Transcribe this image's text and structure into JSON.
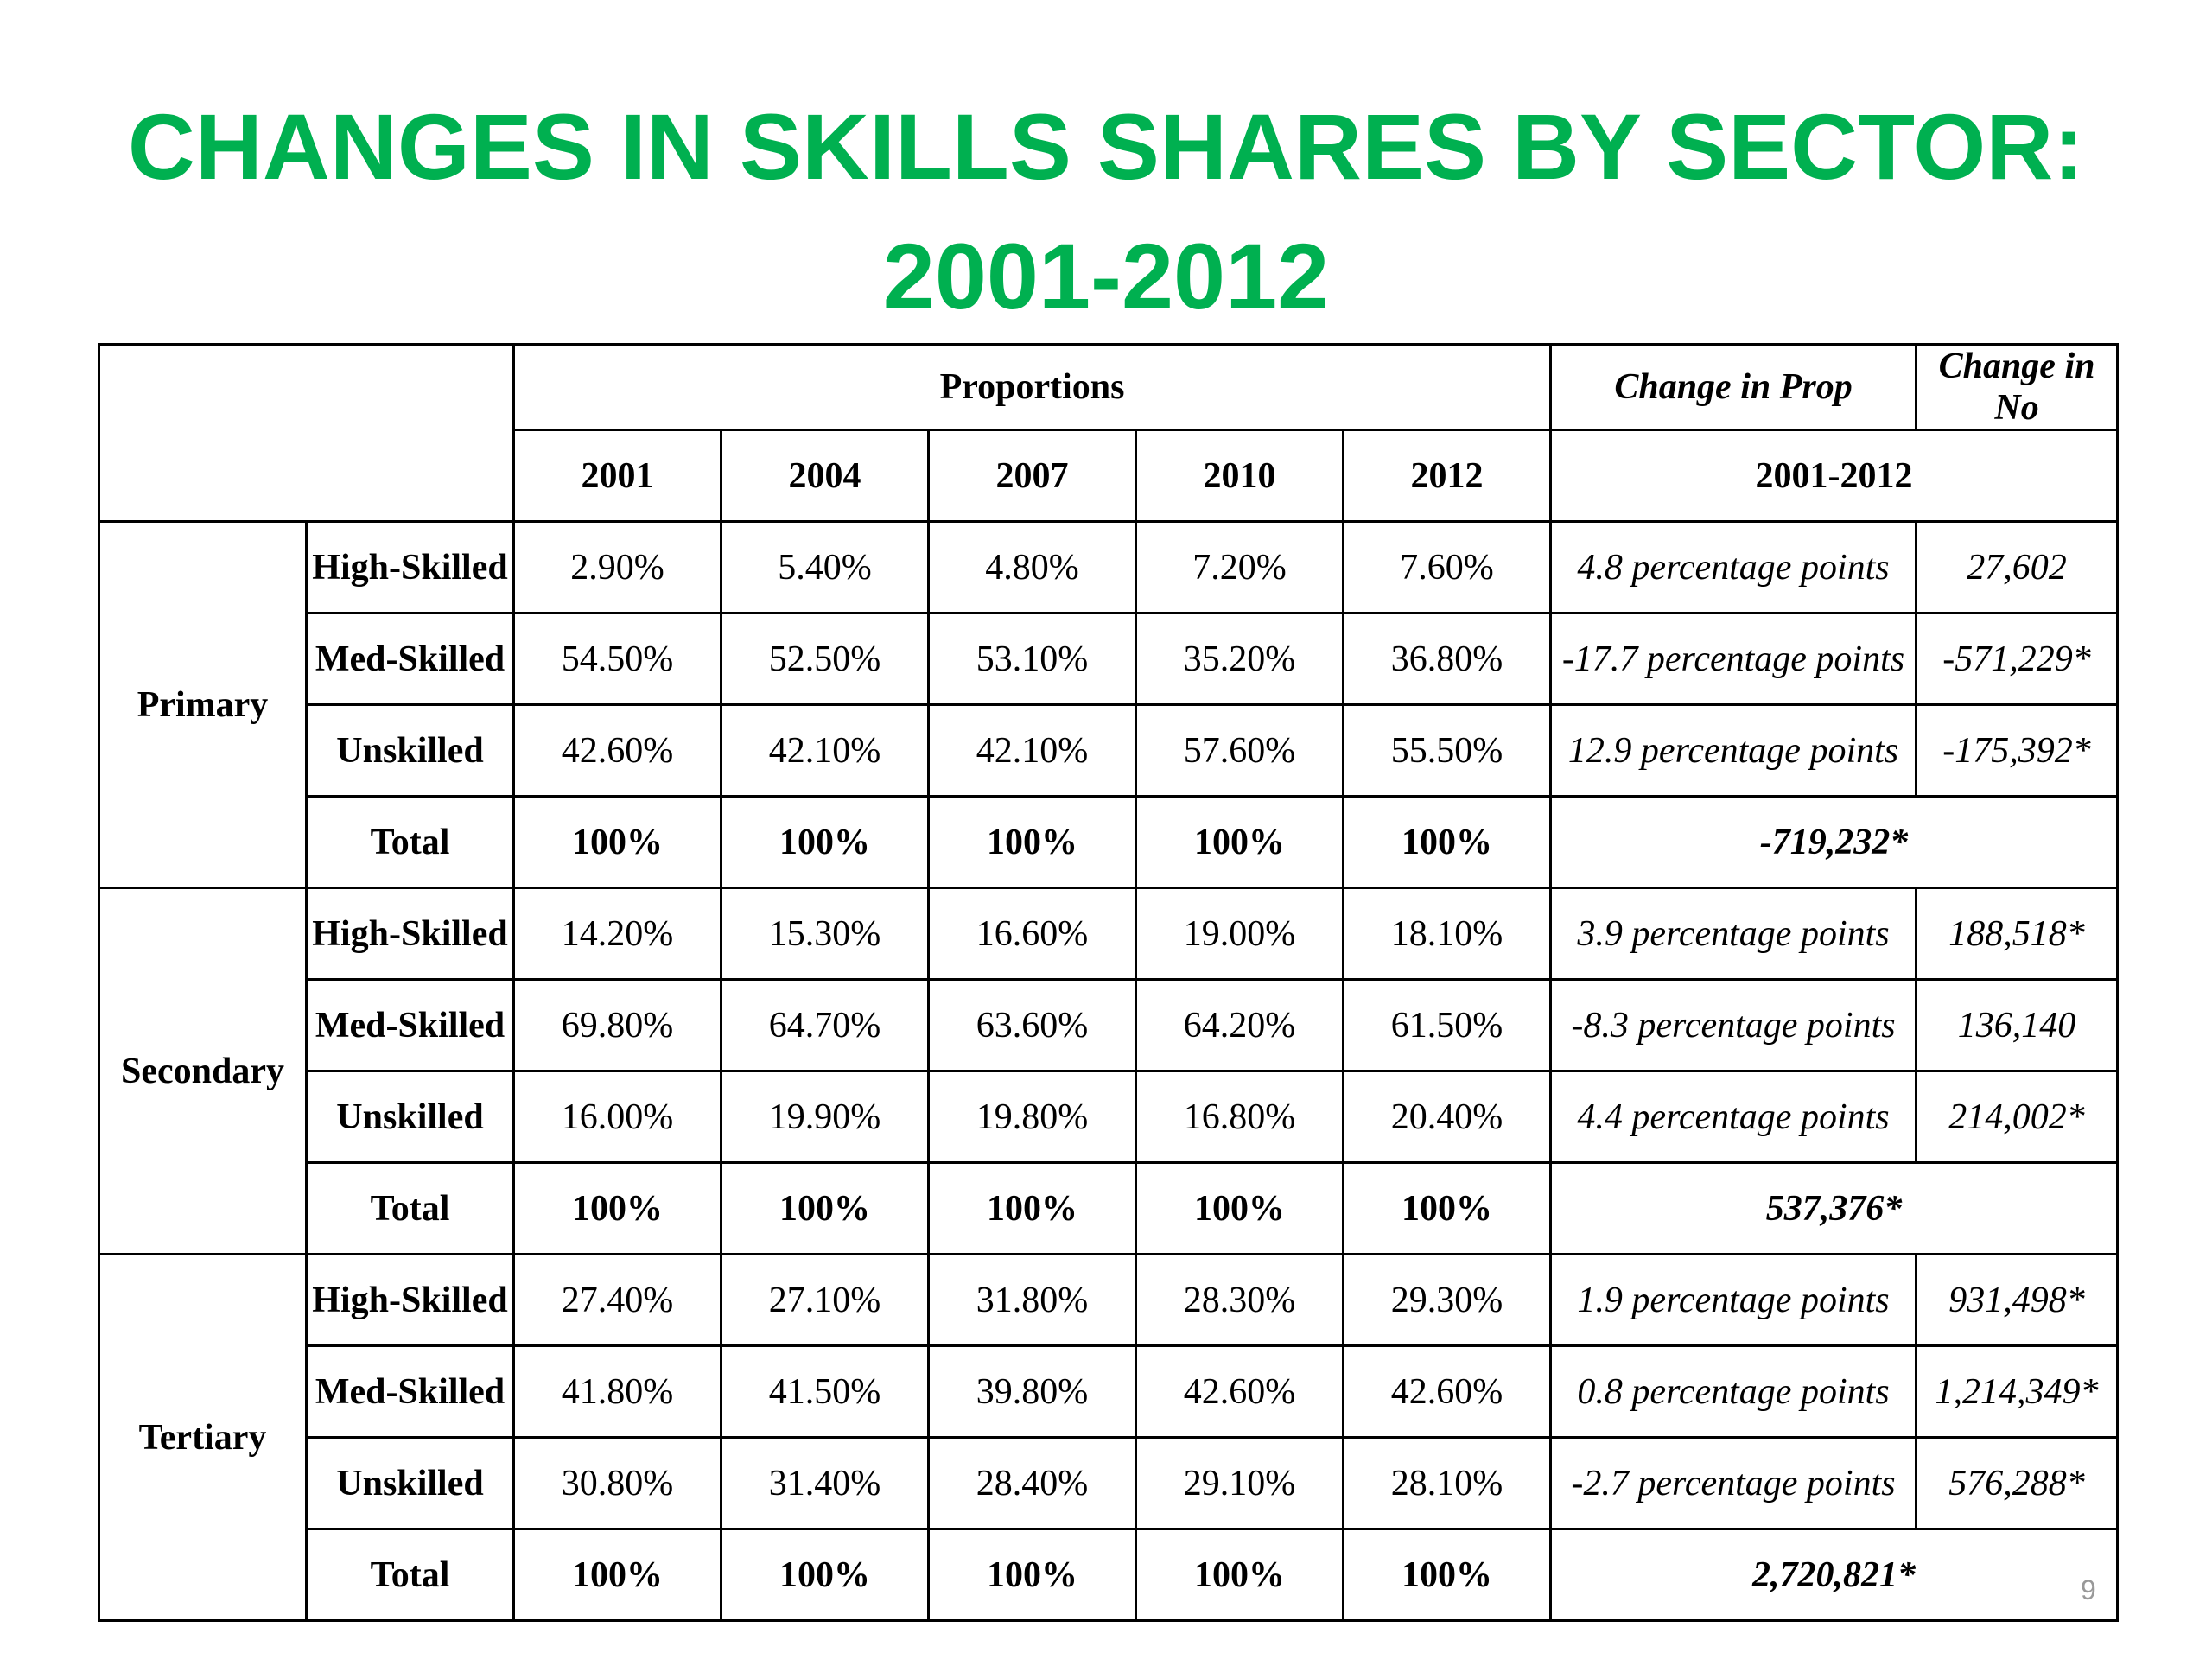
{
  "title": {
    "line1": "CHANGES IN SKILLS SHARES BY SECTOR:",
    "line2": "2001-2012"
  },
  "colors": {
    "title": "#00b050",
    "border": "#000000"
  },
  "table": {
    "header": {
      "proportions": "Proportions",
      "change_prop": "Change in Prop",
      "change_no": "Change in No",
      "years": [
        "2001",
        "2004",
        "2007",
        "2010",
        "2012"
      ],
      "period": "2001-2012"
    },
    "sectors": [
      {
        "name": "Primary",
        "rows": [
          {
            "level": "High-Skilled",
            "values": [
              "2.90%",
              "5.40%",
              "4.80%",
              "7.20%",
              "7.60%"
            ],
            "change_prop": "4.8 percentage points",
            "change_no": "27,602"
          },
          {
            "level": "Med-Skilled",
            "values": [
              "54.50%",
              "52.50%",
              "53.10%",
              "35.20%",
              "36.80%"
            ],
            "change_prop": "-17.7 percentage points",
            "change_no": "-571,229*"
          },
          {
            "level": "Unskilled",
            "values": [
              "42.60%",
              "42.10%",
              "42.10%",
              "57.60%",
              "55.50%"
            ],
            "change_prop": "12.9 percentage points",
            "change_no": "-175,392*"
          }
        ],
        "total": {
          "level": "Total",
          "values": [
            "100%",
            "100%",
            "100%",
            "100%",
            "100%"
          ],
          "change": "-719,232*"
        }
      },
      {
        "name": "Secondary",
        "rows": [
          {
            "level": "High-Skilled",
            "values": [
              "14.20%",
              "15.30%",
              "16.60%",
              "19.00%",
              "18.10%"
            ],
            "change_prop": "3.9 percentage points",
            "change_no": "188,518*"
          },
          {
            "level": "Med-Skilled",
            "values": [
              "69.80%",
              "64.70%",
              "63.60%",
              "64.20%",
              "61.50%"
            ],
            "change_prop": "-8.3 percentage points",
            "change_no": "136,140"
          },
          {
            "level": "Unskilled",
            "values": [
              "16.00%",
              "19.90%",
              "19.80%",
              "16.80%",
              "20.40%"
            ],
            "change_prop": "4.4 percentage points",
            "change_no": "214,002*"
          }
        ],
        "total": {
          "level": "Total",
          "values": [
            "100%",
            "100%",
            "100%",
            "100%",
            "100%"
          ],
          "change": "537,376*"
        }
      },
      {
        "name": "Tertiary",
        "rows": [
          {
            "level": "High-Skilled",
            "values": [
              "27.40%",
              "27.10%",
              "31.80%",
              "28.30%",
              "29.30%"
            ],
            "change_prop": "1.9 percentage points",
            "change_no": "931,498*"
          },
          {
            "level": "Med-Skilled",
            "values": [
              "41.80%",
              "41.50%",
              "39.80%",
              "42.60%",
              "42.60%"
            ],
            "change_prop": "0.8 percentage points",
            "change_no": "1,214,349*"
          },
          {
            "level": "Unskilled",
            "values": [
              "30.80%",
              "31.40%",
              "28.40%",
              "29.10%",
              "28.10%"
            ],
            "change_prop": "-2.7 percentage points",
            "change_no": "576,288*"
          }
        ],
        "total": {
          "level": "Total",
          "values": [
            "100%",
            "100%",
            "100%",
            "100%",
            "100%"
          ],
          "change": "2,720,821*"
        }
      }
    ]
  },
  "page_number": "9"
}
